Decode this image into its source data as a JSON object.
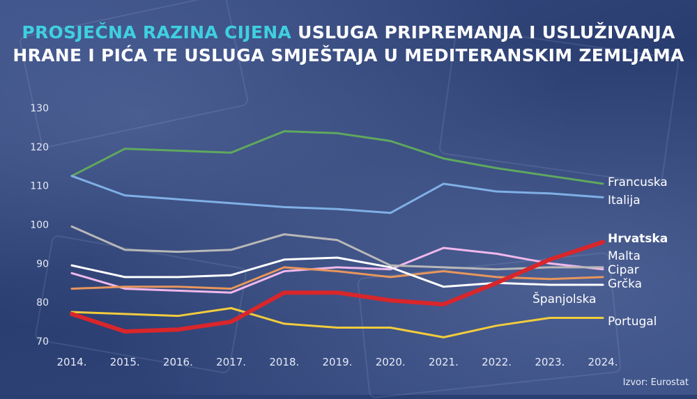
{
  "title": {
    "accent": "PROSJEČNA RAZINA CIJENA",
    "rest": "USLUGA PRIPREMANJA I USLUŽIVANJA HRANE I PIĆA TE USLUGA SMJEŠTAJA U MEDITERANSKIM ZEMLJAMA"
  },
  "source": "Izvor: Eurostat",
  "colors": {
    "Francuska": "#5fa85f",
    "Italija": "#7fb0e6",
    "Hrvatska": "#d9262b",
    "Malta": "#f0b8ec",
    "Cipar": "#b8b8b8",
    "Grčka": "#e8965c",
    "Španjolska": "#ffffff",
    "Portugal": "#f2cc3c"
  },
  "chart_data": {
    "type": "line",
    "categories": [
      "2014.",
      "2015.",
      "2016.",
      "2017.",
      "2018.",
      "2019.",
      "2020.",
      "2021.",
      "2022.",
      "2023.",
      "2024."
    ],
    "y_ticks": [
      70,
      80,
      90,
      100,
      110,
      120,
      130
    ],
    "ylim": [
      70,
      130
    ],
    "title": "PROSJEČNA RAZINA CIJENA USLUGA PRIPREMANJA I USLUŽIVANJA HRANE I PIĆA TE USLUGA SMJEŠTAJA U MEDITERANSKIM ZEMLJAMA",
    "series": [
      {
        "name": "Francuska",
        "values": [
          112.5,
          119.5,
          119,
          118.5,
          124,
          123.5,
          121.5,
          117,
          114.5,
          112.5,
          110.5
        ]
      },
      {
        "name": "Italija",
        "values": [
          112.5,
          107.5,
          106.5,
          105.5,
          104.5,
          104,
          103,
          110.5,
          108.5,
          108,
          107
        ]
      },
      {
        "name": "Hrvatska",
        "values": [
          77,
          72.5,
          73,
          75,
          82.5,
          82.5,
          80.5,
          79.5,
          85,
          91,
          95.5
        ],
        "highlight": true
      },
      {
        "name": "Malta",
        "values": [
          87.5,
          83.5,
          83,
          82.5,
          88,
          89,
          88.5,
          94,
          92.5,
          90,
          88.5
        ]
      },
      {
        "name": "Cipar",
        "values": [
          99.5,
          93.5,
          93,
          93.5,
          97.5,
          96,
          89.5,
          89,
          88.5,
          89,
          89
        ]
      },
      {
        "name": "Grčka",
        "values": [
          83.5,
          84,
          84,
          83.5,
          89,
          88,
          86.5,
          88,
          86.5,
          86,
          86.5
        ]
      },
      {
        "name": "Španjolska",
        "values": [
          89.5,
          86.5,
          86.5,
          87,
          91,
          91.5,
          89,
          84,
          85,
          84.5,
          84.5
        ]
      },
      {
        "name": "Portugal",
        "values": [
          77.5,
          77,
          76.5,
          78.5,
          74.5,
          73.5,
          73.5,
          71,
          74,
          76,
          76
        ]
      }
    ],
    "legend_placement": "right"
  }
}
